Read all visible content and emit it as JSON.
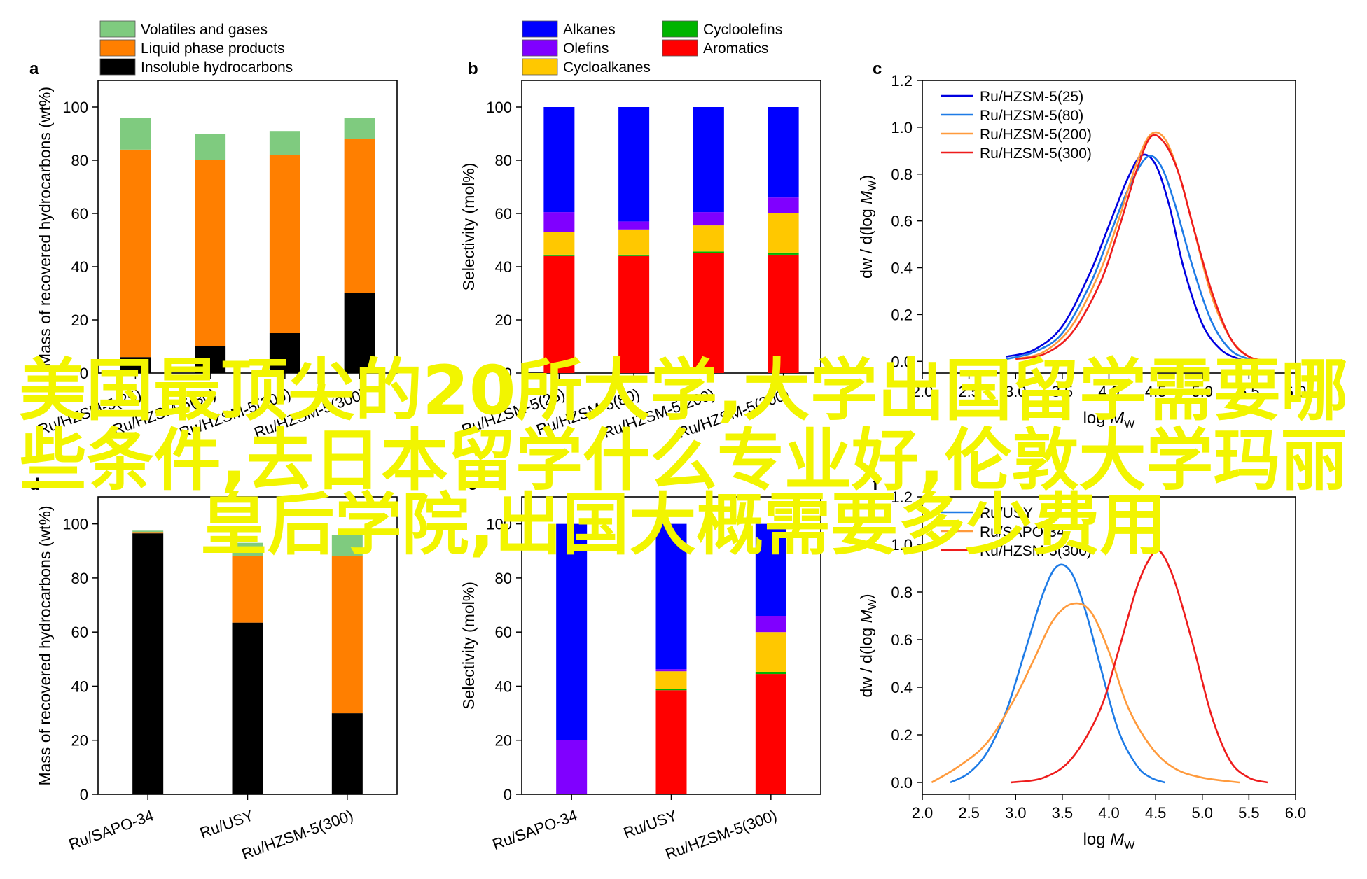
{
  "legends": {
    "mass": [
      {
        "label": "Volatiles and gases",
        "color": "#7fcb7f"
      },
      {
        "label": "Liquid phase products",
        "color": "#ff7f00"
      },
      {
        "label": "Insoluble hydrocarbons",
        "color": "#000000"
      }
    ],
    "selectivity": [
      {
        "label": "Alkanes",
        "color": "#0000ff"
      },
      {
        "label": "Cycloolefins",
        "color": "#00b400"
      },
      {
        "label": "Olefins",
        "color": "#8000ff"
      },
      {
        "label": "Aromatics",
        "color": "#ff0000"
      },
      {
        "label": "Cycloalkanes",
        "color": "#ffc800"
      }
    ]
  },
  "overlay_text": {
    "line1": "美国最顶尖的20所大学,大学出国留学需要哪",
    "line2": "些条件,去日本留学什么专业好,伦敦大学玛丽",
    "line3": "皇后学院,出国大概需要多少费用"
  },
  "chart_data": [
    {
      "panel": "a",
      "type": "bar",
      "stacked": true,
      "ylabel": "Mass of recovered hydrocarbons (wt%)",
      "ylim": [
        0,
        110
      ],
      "categories": [
        "Ru/HZSM-5(25)",
        "Ru/HZSM-5(80)",
        "Ru/HZSM-5(200)",
        "Ru/HZSM-5(300)"
      ],
      "series": [
        {
          "name": "Insoluble hydrocarbons",
          "color": "#000000",
          "values": [
            6,
            10,
            15,
            30
          ]
        },
        {
          "name": "Liquid phase products",
          "color": "#ff7f00",
          "values": [
            78,
            70,
            67,
            58
          ]
        },
        {
          "name": "Volatiles and gases",
          "color": "#7fcb7f",
          "values": [
            12,
            10,
            9,
            8
          ]
        }
      ]
    },
    {
      "panel": "b",
      "type": "bar",
      "stacked": true,
      "ylabel": "Selectivity (mol%)",
      "ylim": [
        0,
        110
      ],
      "categories": [
        "Ru/HZSM-5(25)",
        "Ru/HZSM-5(80)",
        "Ru/HZSM-5(200)",
        "Ru/HZSM-5(300)"
      ],
      "series": [
        {
          "name": "Aromatics",
          "color": "#ff0000",
          "values": [
            44,
            44,
            45,
            44.5
          ]
        },
        {
          "name": "Cycloolefins",
          "color": "#00b400",
          "values": [
            0.5,
            0.5,
            0.7,
            0.8
          ]
        },
        {
          "name": "Cycloalkanes",
          "color": "#ffc800",
          "values": [
            8.5,
            9.5,
            9.8,
            14.7
          ]
        },
        {
          "name": "Olefins",
          "color": "#8000ff",
          "values": [
            7.5,
            3,
            5,
            6
          ]
        },
        {
          "name": "Alkanes",
          "color": "#0000ff",
          "values": [
            39.5,
            43,
            39.5,
            34
          ]
        }
      ]
    },
    {
      "panel": "c",
      "type": "line",
      "xlabel": "log M",
      "xlabel_sub": "W",
      "ylabel": "dw / d(log M",
      "ylabel_sub": "W",
      "ylabel_end": ")",
      "xlim": [
        2.0,
        6.0
      ],
      "ylim": [
        -0.05,
        1.2
      ],
      "xticks": [
        "2.0",
        "2.5",
        "3.0",
        "3.5",
        "4.0",
        "4.5",
        "5.0",
        "5.5",
        "6.0"
      ],
      "yticks": [
        "0.0",
        "0.2",
        "0.4",
        "0.6",
        "0.8",
        "1.0",
        "1.2"
      ],
      "series": [
        {
          "name": "Ru/HZSM-5(25)",
          "color": "#0000e0",
          "x": [
            2.9,
            3.2,
            3.5,
            3.8,
            4.0,
            4.2,
            4.35,
            4.5,
            4.65,
            4.8,
            5.0,
            5.2,
            5.4,
            5.55
          ],
          "y": [
            0.02,
            0.05,
            0.15,
            0.38,
            0.58,
            0.78,
            0.88,
            0.84,
            0.66,
            0.4,
            0.16,
            0.05,
            0.01,
            0.0
          ]
        },
        {
          "name": "Ru/HZSM-5(80)",
          "color": "#1e7be6",
          "x": [
            2.9,
            3.2,
            3.5,
            3.8,
            4.0,
            4.2,
            4.4,
            4.55,
            4.7,
            4.9,
            5.1,
            5.3,
            5.5,
            5.65
          ],
          "y": [
            0.01,
            0.04,
            0.12,
            0.33,
            0.53,
            0.73,
            0.87,
            0.84,
            0.68,
            0.4,
            0.17,
            0.05,
            0.01,
            0.0
          ]
        },
        {
          "name": "Ru/HZSM-5(200)",
          "color": "#ff9a3c",
          "x": [
            3.0,
            3.3,
            3.6,
            3.9,
            4.1,
            4.3,
            4.45,
            4.6,
            4.75,
            4.9,
            5.1,
            5.3,
            5.5,
            5.7
          ],
          "y": [
            0.01,
            0.04,
            0.15,
            0.38,
            0.6,
            0.85,
            0.97,
            0.95,
            0.8,
            0.58,
            0.28,
            0.1,
            0.02,
            0.0
          ]
        },
        {
          "name": "Ru/HZSM-5(300)",
          "color": "#ee1c1c",
          "x": [
            3.0,
            3.3,
            3.6,
            3.9,
            4.1,
            4.3,
            4.45,
            4.6,
            4.75,
            4.9,
            5.1,
            5.3,
            5.5,
            5.75
          ],
          "y": [
            0.01,
            0.03,
            0.12,
            0.33,
            0.56,
            0.82,
            0.96,
            0.93,
            0.8,
            0.58,
            0.3,
            0.1,
            0.02,
            0.0
          ]
        }
      ]
    },
    {
      "panel": "d",
      "type": "bar",
      "stacked": true,
      "ylabel": "Mass of recovered hydrocarbons (wt%)",
      "ylim": [
        0,
        110
      ],
      "categories": [
        "Ru/SAPO-34",
        "Ru/USY",
        "Ru/HZSM-5(300)"
      ],
      "series": [
        {
          "name": "Insoluble hydrocarbons",
          "color": "#000000",
          "values": [
            96.5,
            63.5,
            30
          ]
        },
        {
          "name": "Liquid phase products",
          "color": "#ff7f00",
          "values": [
            0.5,
            24.5,
            58
          ]
        },
        {
          "name": "Volatiles and gases",
          "color": "#7fcb7f",
          "values": [
            0.5,
            5,
            8
          ]
        }
      ]
    },
    {
      "panel": "e",
      "type": "bar",
      "stacked": true,
      "ylabel": "Selectivity (mol%)",
      "ylim": [
        0,
        110
      ],
      "categories": [
        "Ru/SAPO-34",
        "Ru/USY",
        "Ru/HZSM-5(300)"
      ],
      "series": [
        {
          "name": "Aromatics",
          "color": "#ff0000",
          "values": [
            0,
            38.5,
            44.5
          ]
        },
        {
          "name": "Cycloolefins",
          "color": "#00b400",
          "values": [
            0,
            0.5,
            0.8
          ]
        },
        {
          "name": "Cycloalkanes",
          "color": "#ffc800",
          "values": [
            0,
            6.5,
            14.7
          ]
        },
        {
          "name": "Olefins",
          "color": "#8000ff",
          "values": [
            20,
            0.8,
            6
          ]
        },
        {
          "name": "Alkanes",
          "color": "#0000ff",
          "values": [
            80,
            53.7,
            34
          ]
        }
      ]
    },
    {
      "panel": "f",
      "type": "line",
      "xlabel": "log M",
      "xlabel_sub": "W",
      "ylabel": "dw / d(log M",
      "ylabel_sub": "W",
      "ylabel_end": ")",
      "xlim": [
        2.0,
        6.0
      ],
      "ylim": [
        -0.05,
        1.2
      ],
      "xticks": [
        "2.0",
        "2.5",
        "3.0",
        "3.5",
        "4.0",
        "4.5",
        "5.0",
        "5.5",
        "6.0"
      ],
      "yticks": [
        "0.0",
        "0.2",
        "0.4",
        "0.6",
        "0.8",
        "1.0",
        "1.2"
      ],
      "series": [
        {
          "name": "Ru/USY",
          "color": "#1e7be6",
          "x": [
            2.3,
            2.5,
            2.7,
            2.9,
            3.1,
            3.3,
            3.45,
            3.6,
            3.75,
            3.9,
            4.1,
            4.3,
            4.45,
            4.6
          ],
          "y": [
            0.0,
            0.04,
            0.13,
            0.3,
            0.55,
            0.8,
            0.91,
            0.88,
            0.72,
            0.5,
            0.22,
            0.07,
            0.02,
            0.0
          ]
        },
        {
          "name": "Ru/SAPO-34",
          "color": "#ff9a3c",
          "x": [
            2.1,
            2.4,
            2.7,
            3.0,
            3.2,
            3.4,
            3.6,
            3.8,
            4.0,
            4.2,
            4.45,
            4.7,
            5.0,
            5.4
          ],
          "y": [
            0.0,
            0.07,
            0.17,
            0.36,
            0.52,
            0.68,
            0.75,
            0.72,
            0.55,
            0.32,
            0.15,
            0.06,
            0.02,
            0.0
          ]
        },
        {
          "name": "Ru/HZSM-5(300)",
          "color": "#ee1c1c",
          "x": [
            2.95,
            3.3,
            3.6,
            3.9,
            4.1,
            4.3,
            4.45,
            4.55,
            4.7,
            4.9,
            5.1,
            5.3,
            5.5,
            5.7
          ],
          "y": [
            0.0,
            0.02,
            0.1,
            0.3,
            0.55,
            0.82,
            0.95,
            0.97,
            0.85,
            0.58,
            0.28,
            0.09,
            0.02,
            0.0
          ]
        }
      ]
    }
  ]
}
